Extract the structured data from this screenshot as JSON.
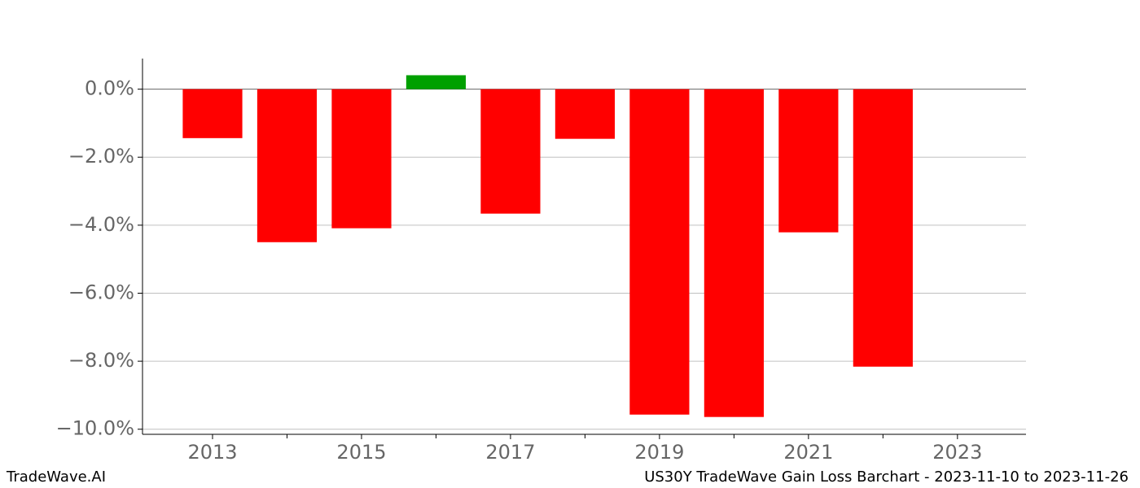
{
  "chart_data": {
    "type": "bar",
    "x": [
      2013,
      2014,
      2015,
      2016,
      2017,
      2018,
      2019,
      2020,
      2021,
      2022
    ],
    "values": [
      -1.44,
      -4.5,
      -4.09,
      0.41,
      -3.66,
      -1.46,
      -9.57,
      -9.64,
      -4.21,
      -8.16
    ],
    "colors": [
      "#ff0000",
      "#ff0000",
      "#ff0000",
      "#00a000",
      "#ff0000",
      "#ff0000",
      "#ff0000",
      "#ff0000",
      "#ff0000",
      "#ff0000"
    ],
    "bar_width": 0.8,
    "xlim": [
      2012.06,
      2023.92
    ],
    "xticks": [
      2013,
      2015,
      2017,
      2019,
      2021,
      2023
    ],
    "xminorticks": [
      2014,
      2016,
      2018,
      2020,
      2022
    ],
    "ylim": [
      -10.15,
      0.9
    ],
    "yticks": [
      {
        "value": 0,
        "label": "0.0%"
      },
      {
        "value": -2,
        "label": "−2.0%"
      },
      {
        "value": -4,
        "label": "−4.0%"
      },
      {
        "value": -6,
        "label": "−6.0%"
      },
      {
        "value": -8,
        "label": "−8.0%"
      },
      {
        "value": -10,
        "label": "−10.0%"
      }
    ],
    "grid": true,
    "footer_left": "TradeWave.AI",
    "footer_right": "US30Y TradeWave Gain Loss Barchart - 2023-11-10 to 2023-11-26"
  }
}
